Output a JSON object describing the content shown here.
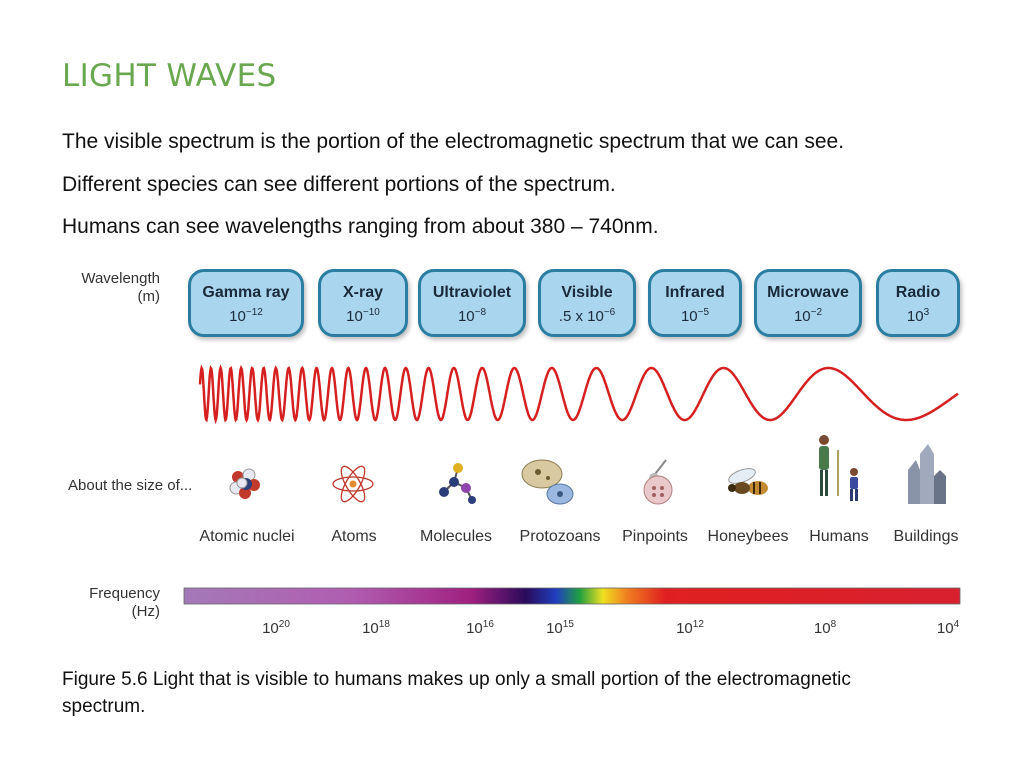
{
  "title": "LIGHT WAVES",
  "paragraphs": [
    "The visible spectrum is the portion of the electromagnetic spectrum that we can see.",
    "Different species can see different portions of the spectrum.",
    "Humans can see wavelengths ranging from about 380 – 740nm."
  ],
  "diagram": {
    "wavelength_label_1": "Wavelength",
    "wavelength_label_2": "(m)",
    "size_label": "About the size of...",
    "frequency_label_1": "Frequency",
    "frequency_label_2": "(Hz)",
    "bands": [
      {
        "name": "Gamma ray",
        "base": "10",
        "exp": "−12"
      },
      {
        "name": "X-ray",
        "base": "10",
        "exp": "−10"
      },
      {
        "name": "Ultraviolet",
        "base": "10",
        "exp": "−8"
      },
      {
        "name": "Visible",
        "base": ".5 x 10",
        "exp": "−6"
      },
      {
        "name": "Infrared",
        "base": "10",
        "exp": "−5"
      },
      {
        "name": "Microwave",
        "base": "10",
        "exp": "−2"
      },
      {
        "name": "Radio",
        "base": "10",
        "exp": "3"
      }
    ],
    "objects": [
      {
        "label": "Atomic nuclei",
        "icon": "atomic-nucleus-icon"
      },
      {
        "label": "Atoms",
        "icon": "atom-icon"
      },
      {
        "label": "Molecules",
        "icon": "molecule-icon"
      },
      {
        "label": "Protozoans",
        "icon": "protozoan-icon"
      },
      {
        "label": "Pinpoints",
        "icon": "pinpoint-icon"
      },
      {
        "label": "Honeybees",
        "icon": "honeybee-icon"
      },
      {
        "label": "Humans",
        "icon": "humans-icon"
      },
      {
        "label": "Buildings",
        "icon": "buildings-icon"
      }
    ],
    "frequencies": [
      {
        "base": "10",
        "exp": "20"
      },
      {
        "base": "10",
        "exp": "18"
      },
      {
        "base": "10",
        "exp": "16"
      },
      {
        "base": "10",
        "exp": "15"
      },
      {
        "base": "10",
        "exp": "12"
      },
      {
        "base": "10",
        "exp": "8"
      },
      {
        "base": "10",
        "exp": "4"
      }
    ],
    "colors": {
      "band_fill": "#a9d6ee",
      "band_border": "#2b7ea1",
      "wave": "#d62020",
      "title": "#6aa84f"
    }
  },
  "caption": "Figure 5.6 Light that is visible to humans makes up only a small portion of the electromagnetic spectrum."
}
